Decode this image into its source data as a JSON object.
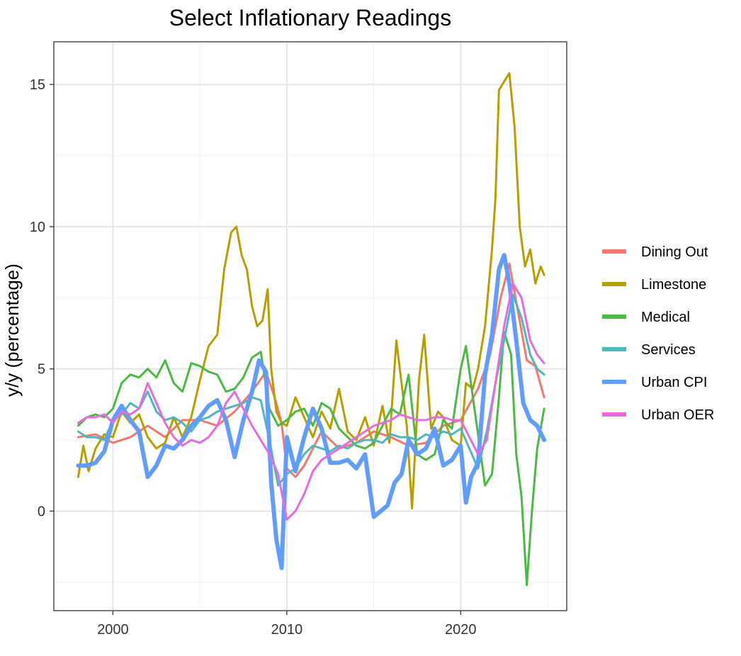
{
  "chart_data": {
    "type": "line",
    "title": "Select Inflationary Readings",
    "xlabel": "",
    "ylabel": "y/y (percentage)",
    "xlim": [
      1996.6,
      2026.1
    ],
    "ylim": [
      -3.5,
      16.5
    ],
    "x_ticks": [
      2000,
      2010,
      2020
    ],
    "x_tick_labels": [
      "2000",
      "2010",
      "2020"
    ],
    "y_ticks": [
      0,
      5,
      10,
      15
    ],
    "y_tick_labels": [
      "0",
      "5",
      "10",
      "15"
    ],
    "grid": true,
    "legend_position": "right",
    "series": [
      {
        "name": "Dining Out",
        "color": "#F8766D",
        "x": [
          1998,
          1999,
          2000,
          2001,
          2002,
          2003,
          2004,
          2005,
          2006,
          2007,
          2008,
          2008.8,
          2009.3,
          2009.7,
          2010,
          2010.5,
          2011,
          2012,
          2013,
          2014,
          2015,
          2016,
          2017,
          2018,
          2019,
          2020,
          2021,
          2021.7,
          2022.3,
          2022.8,
          2023.3,
          2023.8,
          2024.3,
          2024.8
        ],
        "y": [
          2.6,
          2.7,
          2.4,
          2.6,
          3.0,
          2.6,
          3.2,
          3.2,
          3.0,
          3.5,
          4.2,
          4.9,
          4.0,
          3.1,
          1.5,
          1.2,
          1.6,
          2.8,
          2.2,
          2.4,
          2.8,
          2.6,
          2.3,
          2.4,
          3.0,
          3.2,
          4.3,
          5.5,
          7.5,
          8.7,
          7.0,
          5.3,
          5.1,
          4.0
        ]
      },
      {
        "name": "Limestone",
        "color": "#B79F00",
        "x": [
          1998,
          1998.3,
          1998.6,
          1999,
          1999.5,
          2000,
          2000.5,
          2001,
          2001.5,
          2002,
          2002.5,
          2003,
          2003.5,
          2004,
          2004.5,
          2005,
          2005.5,
          2006,
          2006.4,
          2006.8,
          2007.1,
          2007.4,
          2007.7,
          2008,
          2008.3,
          2008.6,
          2008.9,
          2009.1,
          2009.4,
          2009.7,
          2010,
          2010.5,
          2011,
          2011.5,
          2012,
          2012.5,
          2013,
          2013.5,
          2014,
          2014.5,
          2015,
          2015.5,
          2015.9,
          2016.3,
          2016.6,
          2016.9,
          2017.2,
          2017.6,
          2017.9,
          2018.3,
          2018.7,
          2019,
          2019.5,
          2020,
          2020.3,
          2020.7,
          2021,
          2021.4,
          2021.8,
          2022,
          2022.2,
          2022.5,
          2022.8,
          2023.1,
          2023.4,
          2023.7,
          2024,
          2024.3,
          2024.6,
          2024.8
        ],
        "y": [
          1.2,
          2.3,
          1.4,
          2.2,
          2.7,
          2.6,
          3.5,
          3.1,
          3.4,
          2.6,
          2.2,
          2.4,
          3.3,
          2.6,
          3.3,
          4.6,
          5.8,
          6.2,
          8.5,
          9.8,
          10.0,
          9.0,
          8.5,
          7.2,
          6.5,
          6.7,
          7.8,
          5.0,
          3.5,
          3.1,
          3.0,
          4.0,
          3.3,
          2.6,
          3.5,
          2.9,
          4.3,
          2.8,
          2.5,
          3.3,
          2.3,
          3.7,
          2.4,
          6.0,
          4.5,
          3.0,
          0.1,
          4.6,
          6.2,
          2.9,
          3.5,
          3.3,
          2.5,
          2.3,
          4.5,
          4.3,
          5.0,
          6.5,
          9.2,
          11.0,
          14.8,
          15.1,
          15.4,
          13.5,
          10.0,
          8.6,
          9.2,
          8.0,
          8.6,
          8.3
        ]
      },
      {
        "name": "Medical",
        "color": "#4CB944",
        "x": [
          1998,
          1998.5,
          1999,
          1999.5,
          2000,
          2000.5,
          2001,
          2001.5,
          2002,
          2002.5,
          2003,
          2003.5,
          2004,
          2004.5,
          2005,
          2005.5,
          2006,
          2006.5,
          2007,
          2007.5,
          2008,
          2008.5,
          2009,
          2009.5,
          2010,
          2010.5,
          2011,
          2011.5,
          2012,
          2012.5,
          2013,
          2013.5,
          2014,
          2014.5,
          2015,
          2015.5,
          2016,
          2016.5,
          2017,
          2017.5,
          2018,
          2018.5,
          2019,
          2019.5,
          2020,
          2020.3,
          2020.7,
          2021,
          2021.4,
          2021.8,
          2022.2,
          2022.5,
          2022.9,
          2023.2,
          2023.5,
          2023.8,
          2024.1,
          2024.4,
          2024.8
        ],
        "y": [
          3.0,
          3.3,
          3.4,
          3.3,
          3.6,
          4.5,
          4.8,
          4.7,
          5.0,
          4.7,
          5.3,
          4.5,
          4.2,
          5.2,
          5.1,
          4.9,
          4.8,
          4.2,
          4.3,
          4.7,
          5.4,
          5.6,
          3.6,
          3.0,
          3.2,
          3.5,
          3.6,
          3.0,
          3.8,
          3.6,
          2.9,
          2.6,
          2.3,
          2.2,
          2.4,
          3.0,
          3.6,
          3.4,
          4.8,
          2.0,
          1.8,
          2.0,
          3.2,
          2.9,
          5.0,
          5.8,
          4.0,
          2.7,
          0.9,
          1.3,
          4.0,
          6.3,
          5.5,
          2.0,
          0.5,
          -2.6,
          0.0,
          2.2,
          3.6
        ]
      },
      {
        "name": "Services",
        "color": "#4FB8BC",
        "x": [
          1998,
          1998.5,
          1999,
          1999.5,
          2000,
          2000.5,
          2001,
          2001.5,
          2002,
          2002.5,
          2003,
          2003.5,
          2004,
          2004.5,
          2005,
          2005.5,
          2006,
          2006.5,
          2007,
          2007.5,
          2008,
          2008.5,
          2009,
          2009.5,
          2010,
          2010.5,
          2011,
          2011.5,
          2012,
          2012.5,
          2013,
          2013.5,
          2014,
          2014.5,
          2015,
          2015.5,
          2016,
          2016.5,
          2017,
          2017.5,
          2018,
          2018.5,
          2019,
          2019.5,
          2020,
          2020.5,
          2021,
          2021.5,
          2022,
          2022.5,
          2023,
          2023.5,
          2024,
          2024.4,
          2024.8
        ],
        "y": [
          2.8,
          2.6,
          2.6,
          2.5,
          3.2,
          3.4,
          3.8,
          3.6,
          4.2,
          3.5,
          3.2,
          3.3,
          3.1,
          2.8,
          3.2,
          3.3,
          3.5,
          3.6,
          3.7,
          3.8,
          4.0,
          3.9,
          2.5,
          0.9,
          1.3,
          1.5,
          2.0,
          2.3,
          2.2,
          2.1,
          2.3,
          2.2,
          2.4,
          2.5,
          2.5,
          2.4,
          2.7,
          2.6,
          2.6,
          2.5,
          2.7,
          2.6,
          2.8,
          2.7,
          2.9,
          2.2,
          1.5,
          2.8,
          4.5,
          6.0,
          7.6,
          6.8,
          5.5,
          5.0,
          4.8
        ]
      },
      {
        "name": "Urban CPI",
        "color": "#619CFF",
        "x": [
          1998,
          1998.5,
          1999,
          1999.5,
          2000,
          2000.5,
          2001,
          2001.5,
          2002,
          2002.5,
          2003,
          2003.5,
          2004,
          2004.5,
          2005,
          2005.5,
          2006,
          2006.5,
          2007,
          2007.5,
          2008,
          2008.4,
          2008.8,
          2009.1,
          2009.4,
          2009.7,
          2010,
          2010.5,
          2011,
          2011.5,
          2012,
          2012.5,
          2013,
          2013.5,
          2014,
          2014.5,
          2015,
          2015.4,
          2015.8,
          2016.2,
          2016.6,
          2017,
          2017.5,
          2018,
          2018.5,
          2019,
          2019.5,
          2020,
          2020.3,
          2020.6,
          2021,
          2021.4,
          2021.8,
          2022.2,
          2022.5,
          2022.8,
          2023.2,
          2023.6,
          2024,
          2024.4,
          2024.8
        ],
        "y": [
          1.6,
          1.6,
          1.7,
          2.1,
          3.2,
          3.7,
          3.2,
          2.8,
          1.2,
          1.6,
          2.3,
          2.2,
          2.5,
          3.0,
          3.3,
          3.7,
          3.9,
          3.2,
          1.9,
          3.2,
          4.2,
          5.3,
          4.9,
          1.0,
          -1.0,
          -2.0,
          2.6,
          1.4,
          2.6,
          3.6,
          2.9,
          1.7,
          1.7,
          1.8,
          1.5,
          2.0,
          -0.2,
          0.0,
          0.2,
          1.0,
          1.3,
          2.5,
          2.0,
          2.2,
          2.9,
          1.6,
          1.8,
          2.3,
          0.3,
          1.2,
          1.7,
          4.8,
          6.2,
          8.5,
          9.0,
          8.0,
          6.0,
          3.8,
          3.2,
          3.0,
          2.5
        ]
      },
      {
        "name": "Urban OER",
        "color": "#E76BE0",
        "x": [
          1998,
          1998.5,
          1999,
          1999.5,
          2000,
          2000.5,
          2001,
          2001.5,
          2002,
          2002.5,
          2003,
          2003.5,
          2004,
          2004.5,
          2005,
          2005.5,
          2006,
          2006.5,
          2007,
          2007.5,
          2008,
          2008.5,
          2009,
          2009.5,
          2010,
          2010.5,
          2011,
          2011.5,
          2012,
          2012.5,
          2013,
          2013.5,
          2014,
          2014.5,
          2015,
          2015.5,
          2016,
          2016.5,
          2017,
          2017.5,
          2018,
          2018.5,
          2019,
          2019.5,
          2020,
          2020.5,
          2021,
          2021.5,
          2022,
          2022.5,
          2023,
          2023.5,
          2024,
          2024.4,
          2024.8
        ],
        "y": [
          3.1,
          3.3,
          3.3,
          3.4,
          3.1,
          3.5,
          3.4,
          3.6,
          4.5,
          3.8,
          3.1,
          2.6,
          2.3,
          2.5,
          2.4,
          2.6,
          3.0,
          3.8,
          4.2,
          3.6,
          3.0,
          2.5,
          2.0,
          1.3,
          -0.3,
          0.0,
          0.6,
          1.4,
          1.8,
          2.0,
          2.2,
          2.4,
          2.6,
          2.8,
          3.0,
          3.1,
          3.2,
          3.4,
          3.3,
          3.2,
          3.2,
          3.3,
          3.3,
          3.2,
          3.2,
          2.6,
          2.0,
          2.5,
          4.5,
          6.5,
          8.0,
          7.5,
          6.0,
          5.5,
          5.2
        ]
      }
    ]
  }
}
